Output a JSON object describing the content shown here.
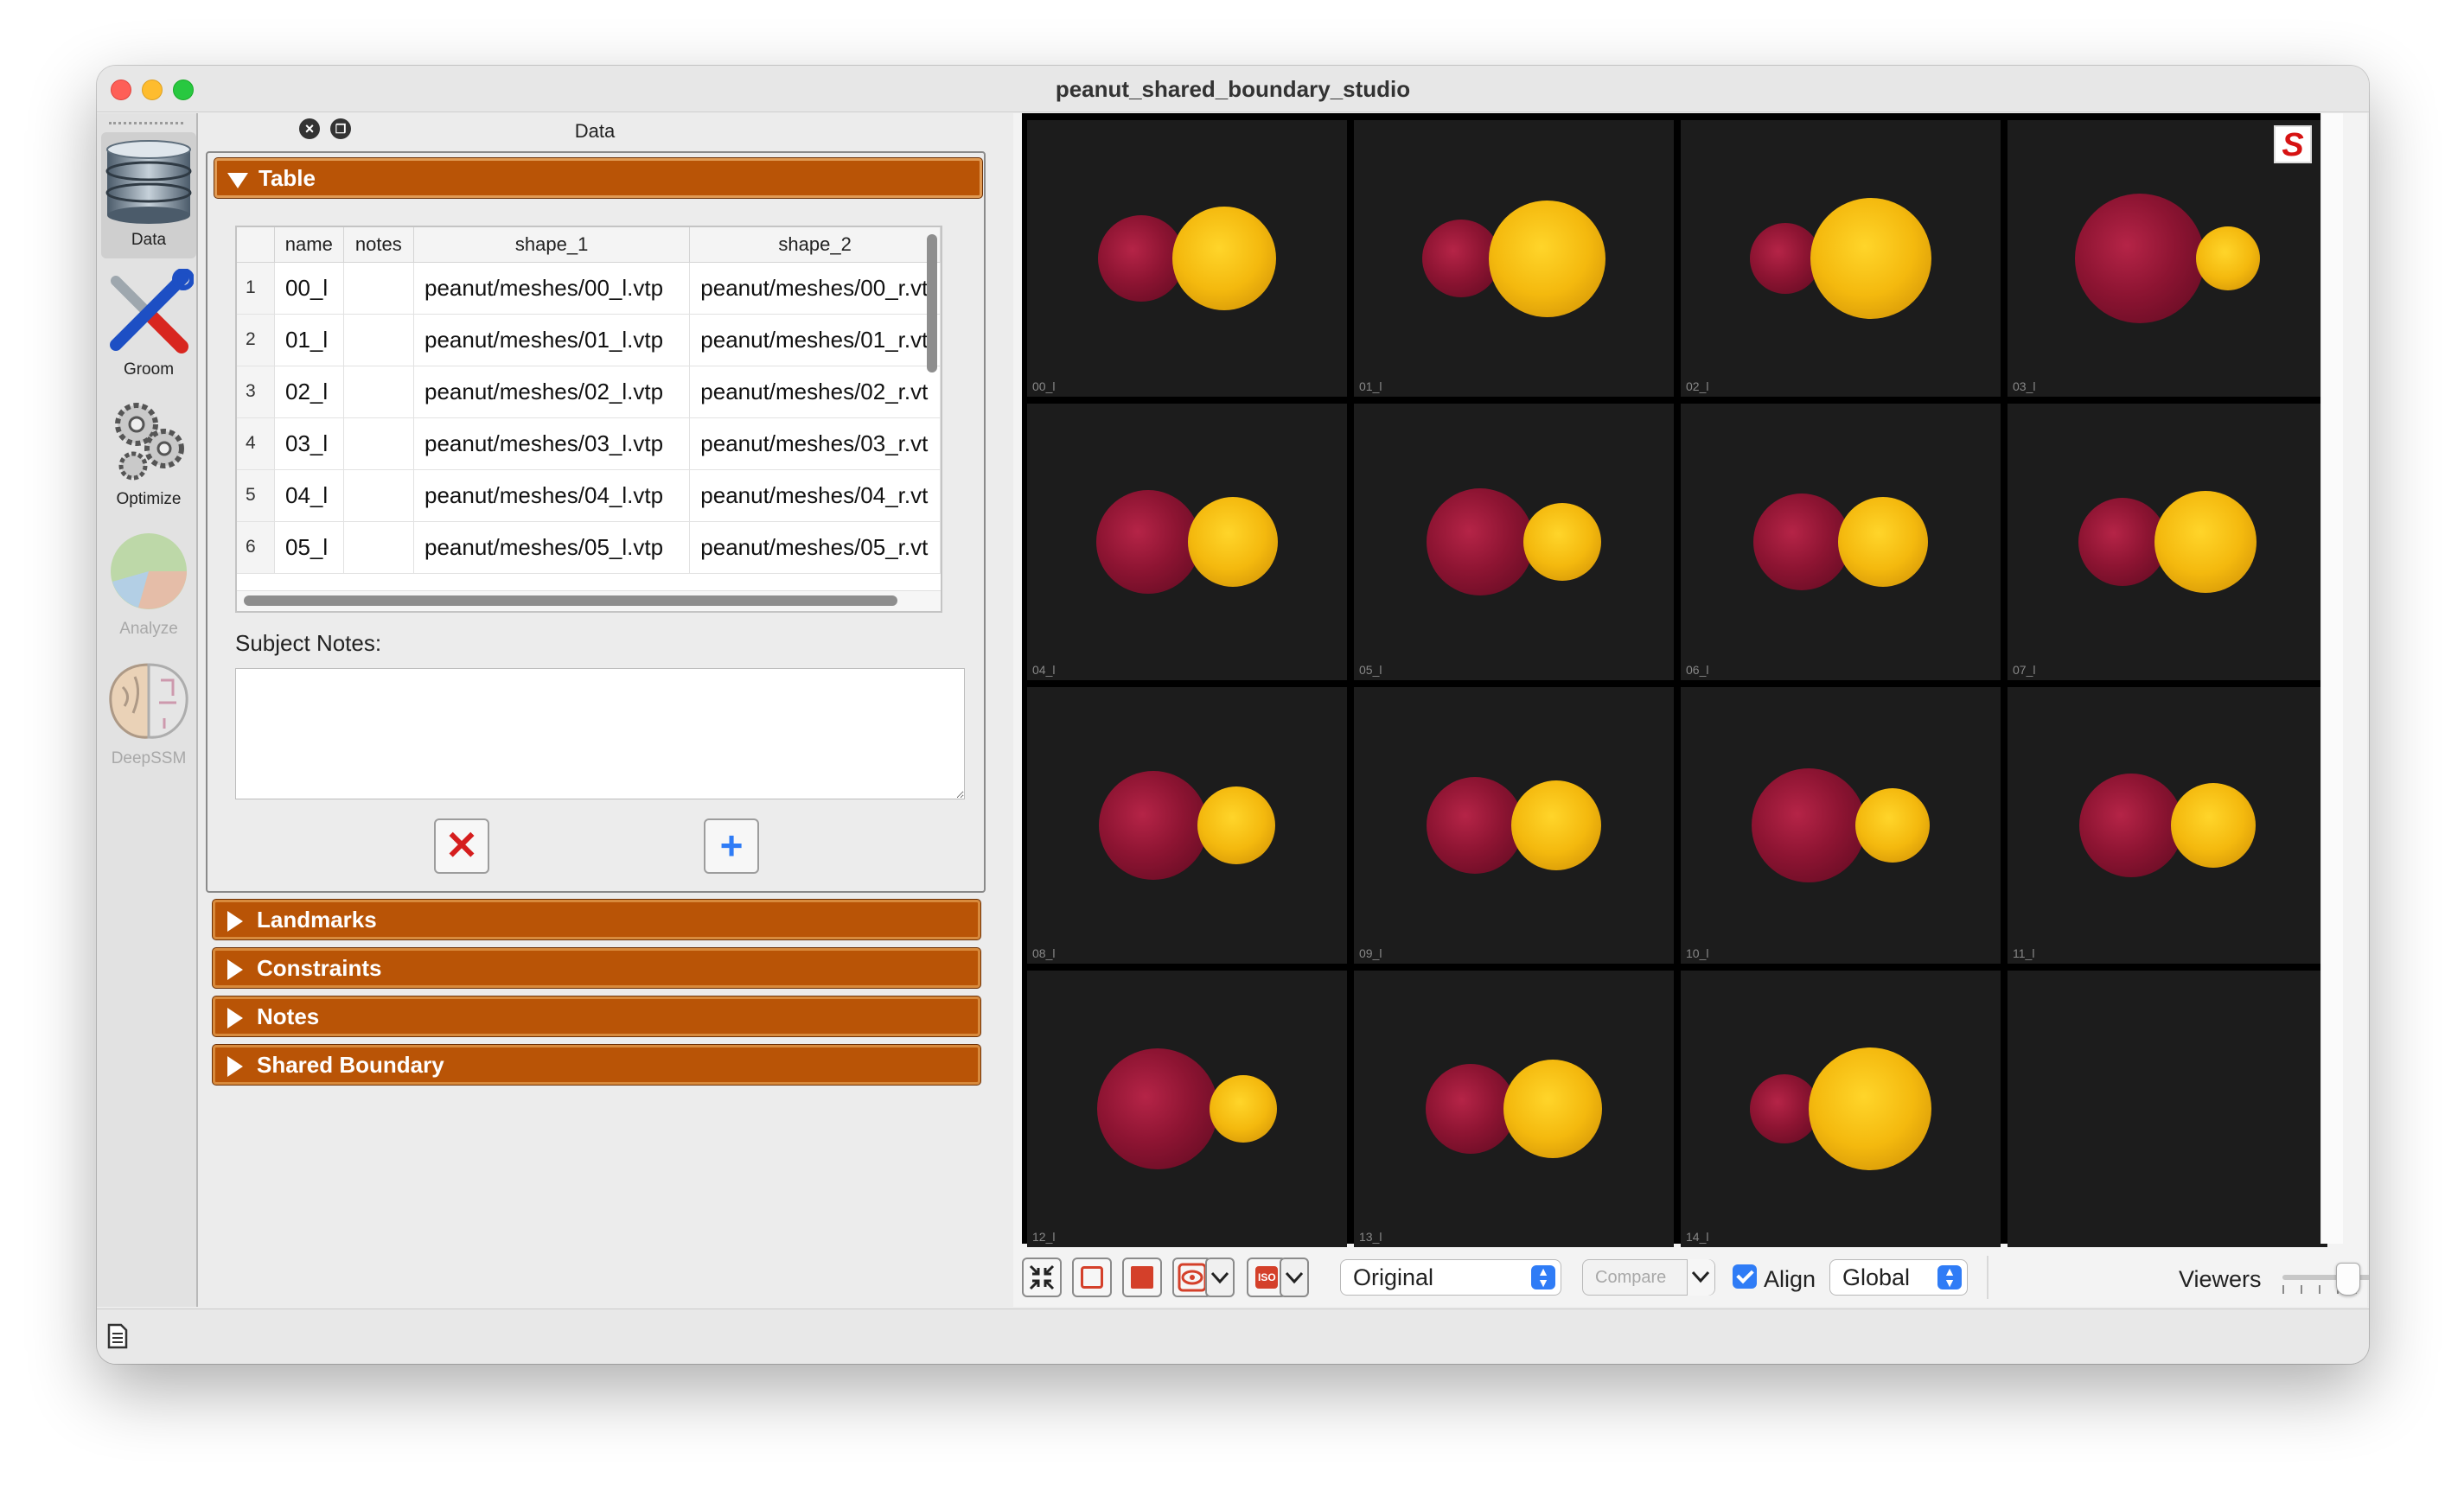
{
  "window": {
    "title": "peanut_shared_boundary_studio"
  },
  "tools": [
    {
      "label": "Data",
      "icon": "database-icon",
      "state": "active"
    },
    {
      "label": "Groom",
      "icon": "screwdriver-wrench-icon",
      "state": "enabled"
    },
    {
      "label": "Optimize",
      "icon": "gears-icon",
      "state": "enabled"
    },
    {
      "label": "Analyze",
      "icon": "pie-chart-icon",
      "state": "disabled"
    },
    {
      "label": "DeepSSM",
      "icon": "brain-icon",
      "state": "disabled"
    }
  ],
  "dock": {
    "title": "Data"
  },
  "sections": {
    "table": "Table",
    "landmarks": "Landmarks",
    "constraints": "Constraints",
    "notes": "Notes",
    "shared_boundary": "Shared Boundary"
  },
  "table": {
    "headers": [
      "name",
      "notes",
      "shape_1",
      "shape_2"
    ],
    "rows": [
      {
        "n": "1",
        "name": "00_l",
        "notes": "",
        "shape_1": "peanut/meshes/00_l.vtp",
        "shape_2": "peanut/meshes/00_r.vt"
      },
      {
        "n": "2",
        "name": "01_l",
        "notes": "",
        "shape_1": "peanut/meshes/01_l.vtp",
        "shape_2": "peanut/meshes/01_r.vt"
      },
      {
        "n": "3",
        "name": "02_l",
        "notes": "",
        "shape_1": "peanut/meshes/02_l.vtp",
        "shape_2": "peanut/meshes/02_r.vt"
      },
      {
        "n": "4",
        "name": "03_l",
        "notes": "",
        "shape_1": "peanut/meshes/03_l.vtp",
        "shape_2": "peanut/meshes/03_r.vt"
      },
      {
        "n": "5",
        "name": "04_l",
        "notes": "",
        "shape_1": "peanut/meshes/04_l.vtp",
        "shape_2": "peanut/meshes/04_r.vt"
      },
      {
        "n": "6",
        "name": "05_l",
        "notes": "",
        "shape_1": "peanut/meshes/05_l.vtp",
        "shape_2": "peanut/meshes/05_r.vt"
      }
    ]
  },
  "subject_notes": {
    "label": "Subject Notes:",
    "value": ""
  },
  "buttons": {
    "delete": "✕",
    "add": "+"
  },
  "viewer": {
    "logo": "S",
    "cells": [
      {
        "label": "00_l",
        "red": 100,
        "gold": 120
      },
      {
        "label": "01_l",
        "red": 90,
        "gold": 135
      },
      {
        "label": "02_l",
        "red": 82,
        "gold": 140
      },
      {
        "label": "03_l",
        "red": 150,
        "gold": 74
      },
      {
        "label": "04_l",
        "red": 120,
        "gold": 104
      },
      {
        "label": "05_l",
        "red": 124,
        "gold": 90
      },
      {
        "label": "06_l",
        "red": 112,
        "gold": 104
      },
      {
        "label": "07_l",
        "red": 102,
        "gold": 118
      },
      {
        "label": "08_l",
        "red": 126,
        "gold": 90
      },
      {
        "label": "09_l",
        "red": 112,
        "gold": 104
      },
      {
        "label": "10_l",
        "red": 132,
        "gold": 86
      },
      {
        "label": "11_l",
        "red": 120,
        "gold": 98
      },
      {
        "label": "12_l",
        "red": 140,
        "gold": 78
      },
      {
        "label": "13_l",
        "red": 104,
        "gold": 114
      },
      {
        "label": "14_l",
        "red": 80,
        "gold": 142
      },
      {
        "label": "",
        "red": 0,
        "gold": 0
      }
    ]
  },
  "bottom_toolbar": {
    "display_mode": "Original",
    "compare": "Compare",
    "align_label": "Align",
    "align_checked": true,
    "align_mode": "Global",
    "viewers_label": "Viewers",
    "iso_label": "ISO"
  },
  "colors": {
    "section_header": "#b95406",
    "accent": "#2f7cf6",
    "shape_1": "#8d1432",
    "shape_2": "#f4b90e"
  }
}
